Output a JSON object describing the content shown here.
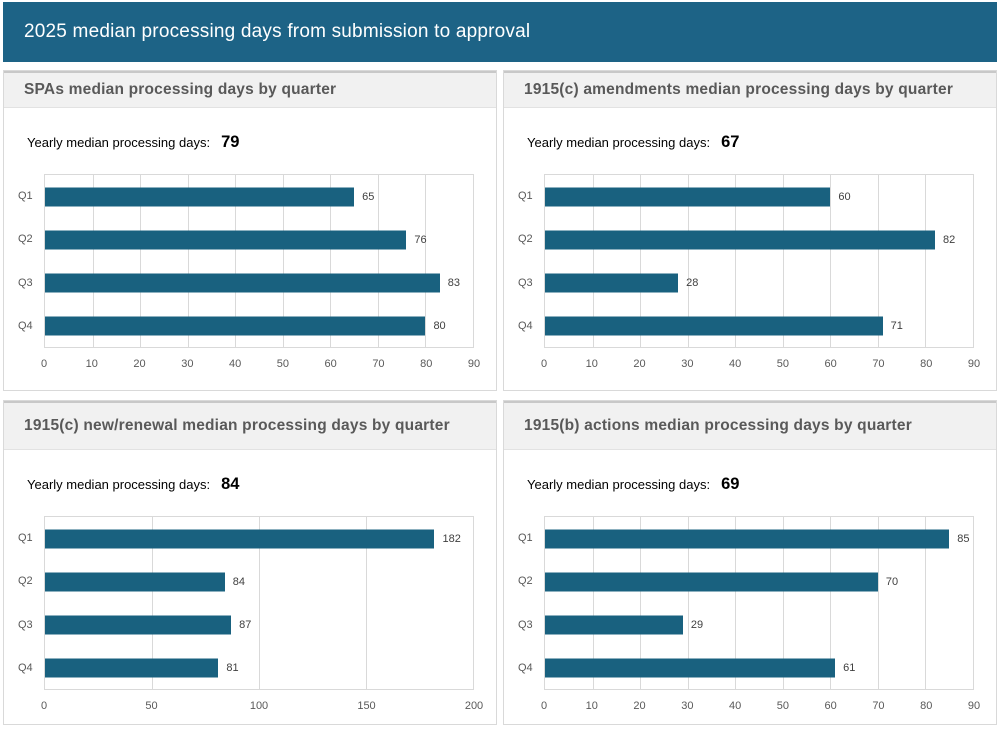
{
  "banner": {
    "title": "2025 median processing days from submission to approval"
  },
  "colors": {
    "banner_bg": "#1d6386",
    "bar": "#19617f",
    "header_bg": "#f1f1f1",
    "header_text": "#595959"
  },
  "chart_data": [
    {
      "type": "bar",
      "orientation": "horizontal",
      "title": "SPAs median processing days by quarter",
      "caption_label": "Yearly median processing days:",
      "yearly_median": 79,
      "categories": [
        "Q1",
        "Q2",
        "Q3",
        "Q4"
      ],
      "values": [
        65,
        76,
        83,
        80
      ],
      "xlim": [
        0,
        90
      ],
      "xticks": [
        0,
        10,
        20,
        30,
        40,
        50,
        60,
        70,
        80,
        90
      ],
      "grid": true,
      "legend": false
    },
    {
      "type": "bar",
      "orientation": "horizontal",
      "title": "1915(c) amendments median processing days by quarter",
      "caption_label": "Yearly median processing days:",
      "yearly_median": 67,
      "categories": [
        "Q1",
        "Q2",
        "Q3",
        "Q4"
      ],
      "values": [
        60,
        82,
        28,
        71
      ],
      "xlim": [
        0,
        90
      ],
      "xticks": [
        0,
        10,
        20,
        30,
        40,
        50,
        60,
        70,
        80,
        90
      ],
      "grid": true,
      "legend": false
    },
    {
      "type": "bar",
      "orientation": "horizontal",
      "title": "1915(c) new/renewal median processing days by quarter",
      "caption_label": "Yearly median processing days:",
      "yearly_median": 84,
      "categories": [
        "Q1",
        "Q2",
        "Q3",
        "Q4"
      ],
      "values": [
        182,
        84,
        87,
        81
      ],
      "xlim": [
        0,
        200
      ],
      "xticks": [
        0,
        50,
        100,
        150,
        200
      ],
      "grid": true,
      "legend": false
    },
    {
      "type": "bar",
      "orientation": "horizontal",
      "title": "1915(b) actions median processing days by quarter",
      "caption_label": "Yearly median processing days:",
      "yearly_median": 69,
      "categories": [
        "Q1",
        "Q2",
        "Q3",
        "Q4"
      ],
      "values": [
        85,
        70,
        29,
        61
      ],
      "xlim": [
        0,
        90
      ],
      "xticks": [
        0,
        10,
        20,
        30,
        40,
        50,
        60,
        70,
        80,
        90
      ],
      "grid": true,
      "legend": false
    }
  ]
}
